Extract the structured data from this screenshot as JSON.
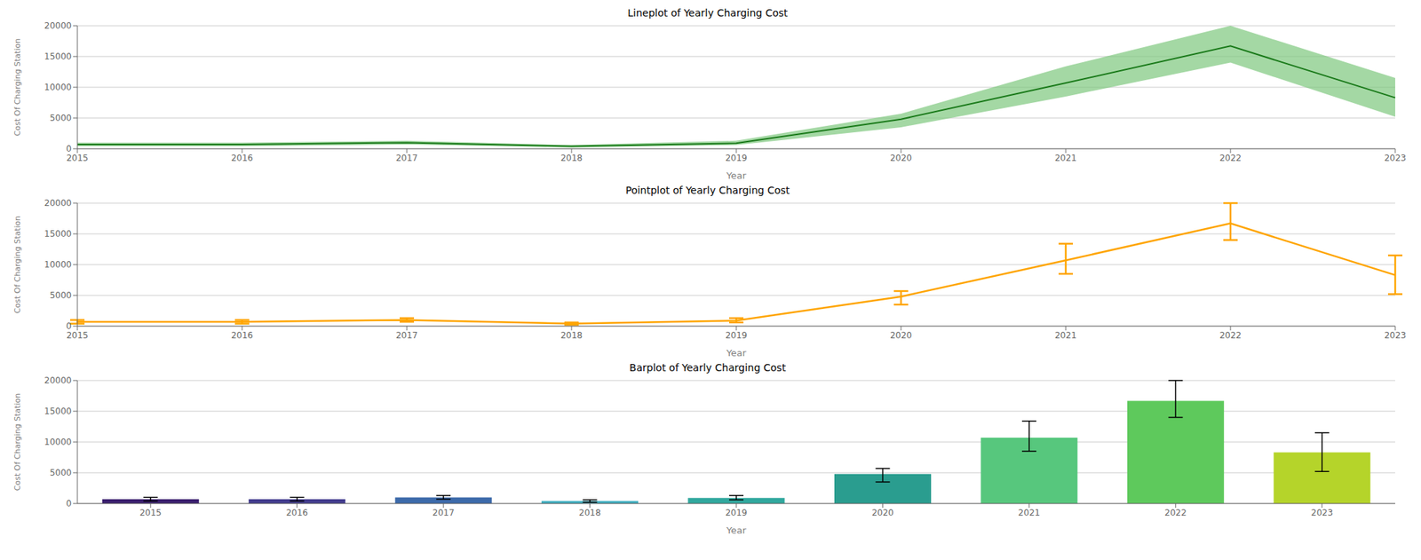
{
  "chart_data": [
    {
      "type": "line",
      "title": "Lineplot of Yearly Charging Cost",
      "xlabel": "Year",
      "ylabel": "Cost Of Charging Station",
      "categories": [
        2015,
        2016,
        2017,
        2018,
        2019,
        2020,
        2021,
        2022,
        2023
      ],
      "ylim": [
        0,
        20000
      ],
      "yticks": [
        0,
        5000,
        10000,
        15000,
        20000
      ],
      "grid": true,
      "series": [
        {
          "type": "area",
          "color": "#7ec87e",
          "lower": [
            400,
            400,
            700,
            200,
            600,
            3500,
            8500,
            14000,
            5200
          ],
          "upper": [
            1000,
            1000,
            1300,
            600,
            1300,
            5700,
            13400,
            20000,
            11500
          ]
        },
        {
          "type": "line",
          "color": "#1a7a1a",
          "values": [
            700,
            700,
            1000,
            400,
            900,
            4800,
            10700,
            16700,
            8300
          ]
        }
      ]
    },
    {
      "type": "line",
      "title": "Pointplot of Yearly Charging Cost",
      "xlabel": "Year",
      "ylabel": "Cost Of Charging Station",
      "categories": [
        2015,
        2016,
        2017,
        2018,
        2019,
        2020,
        2021,
        2022,
        2023
      ],
      "ylim": [
        0,
        20000
      ],
      "yticks": [
        0,
        5000,
        10000,
        15000,
        20000
      ],
      "grid": true,
      "values": [
        700,
        700,
        1000,
        400,
        900,
        4800,
        10700,
        16700,
        8300
      ],
      "color": "#FFA500",
      "error_lower": [
        300,
        300,
        300,
        200,
        300,
        1300,
        2200,
        2700,
        3100
      ],
      "error_upper": [
        300,
        300,
        300,
        200,
        400,
        900,
        2700,
        3300,
        3200
      ]
    },
    {
      "type": "bar",
      "title": "Barplot of Yearly Charging Cost",
      "xlabel": "Year",
      "ylabel": "Cost Of Charging Station",
      "categories": [
        2015,
        2016,
        2017,
        2018,
        2019,
        2020,
        2021,
        2022,
        2023
      ],
      "ylim": [
        0,
        20000
      ],
      "yticks": [
        0,
        5000,
        10000,
        15000,
        20000
      ],
      "grid": true,
      "values": [
        700,
        700,
        1000,
        400,
        900,
        4800,
        10700,
        16700,
        8300
      ],
      "colors": [
        "#3b1f6e",
        "#433d8e",
        "#3d6aaa",
        "#3faebf",
        "#31a89e",
        "#2a9d8f",
        "#57c77d",
        "#5ec95c",
        "#b5d42a"
      ],
      "error_lower": [
        300,
        300,
        300,
        200,
        300,
        1300,
        2200,
        2700,
        3100
      ],
      "error_upper": [
        300,
        300,
        300,
        200,
        400,
        900,
        2700,
        3300,
        3200
      ]
    }
  ]
}
